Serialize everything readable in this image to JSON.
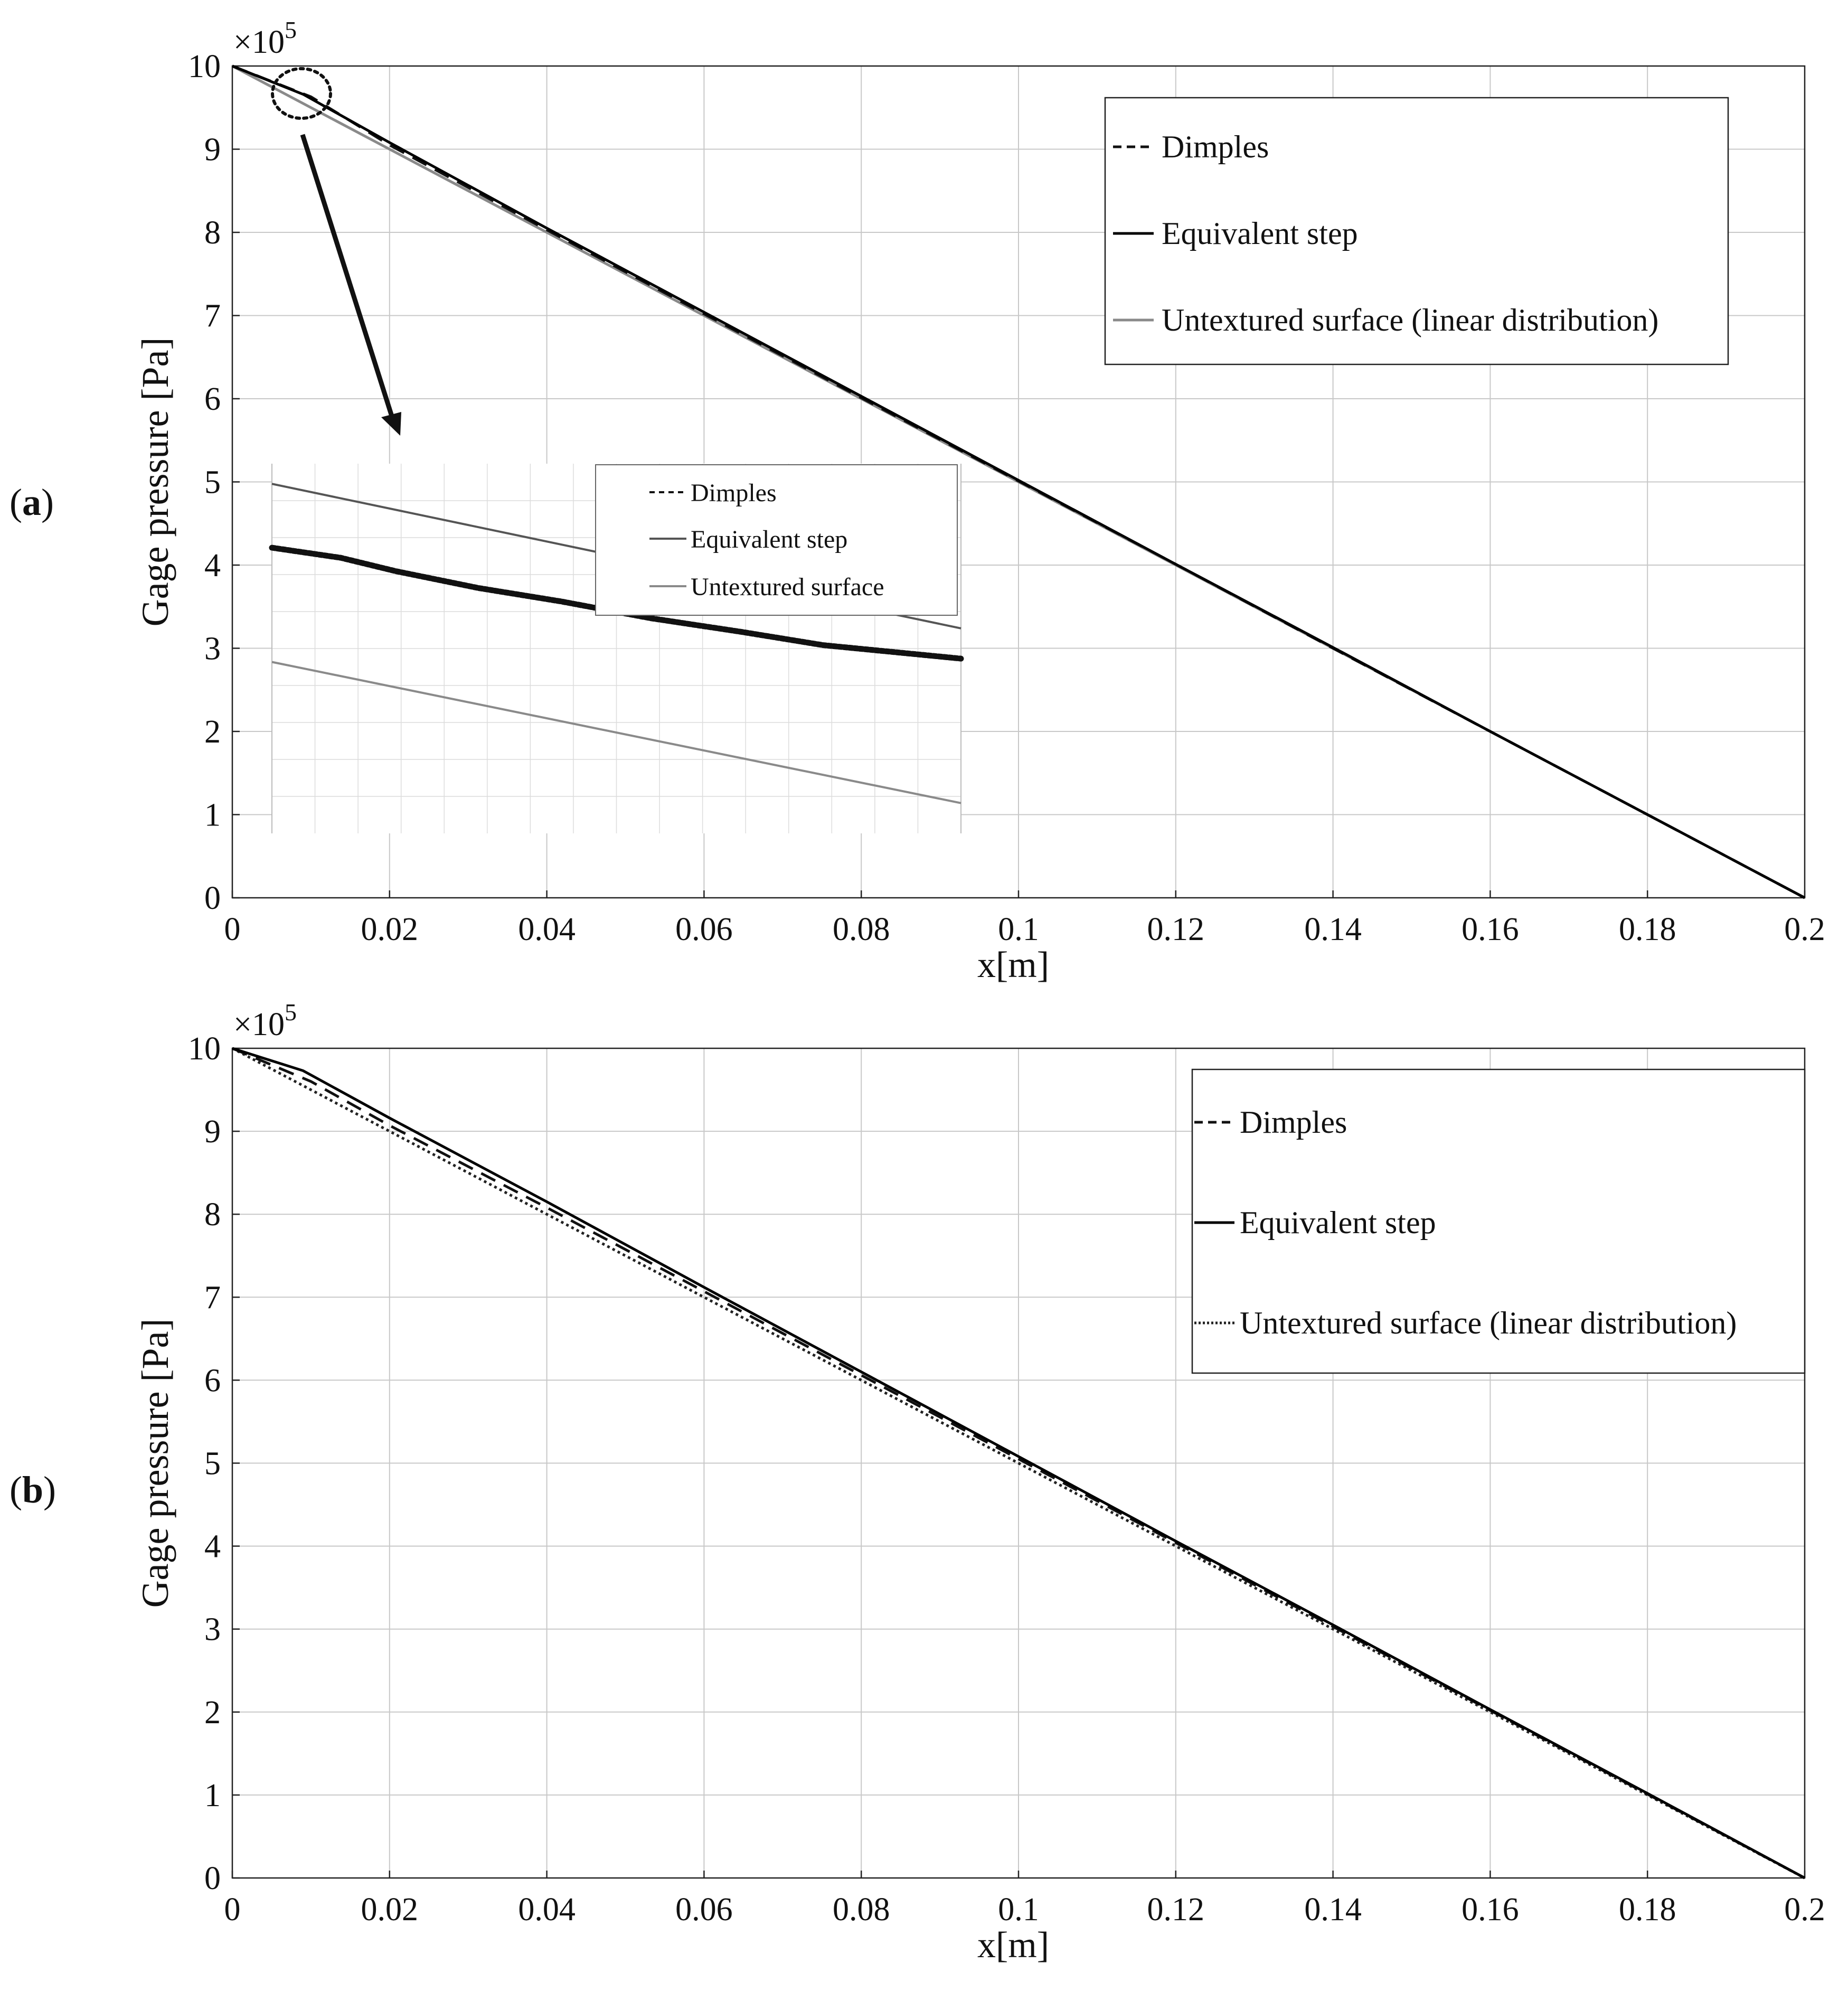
{
  "figure": {
    "panel_labels": [
      {
        "open": "(",
        "letter": "a",
        "close": ")"
      },
      {
        "open": "(",
        "letter": "b",
        "close": ")"
      }
    ]
  },
  "colors": {
    "background": "#ffffff",
    "grid": "#c8c8c8",
    "axis": "#222222",
    "dimples": "#111111",
    "step": "#000000",
    "untextured_a": "#8a8a8a",
    "untextured_b": "#222222",
    "zoom_step": "#555555",
    "zoom_untextured": "#8a8a8a"
  },
  "chart_data": [
    {
      "id": "panel-a",
      "type": "line",
      "panel": "(a)",
      "xlabel": "x[m]",
      "ylabel": "Gage pressure [Pa]",
      "y_multiplier": {
        "base": "×10",
        "exp": "5"
      },
      "xlim": [
        0,
        0.2
      ],
      "ylim": [
        0,
        10
      ],
      "xticks": [
        0,
        0.02,
        0.04,
        0.06,
        0.08,
        0.1,
        0.12,
        0.14,
        0.16,
        0.18,
        0.2
      ],
      "xtick_labels": [
        "0",
        "0.02",
        "0.04",
        "0.06",
        "0.08",
        "0.1",
        "0.12",
        "0.14",
        "0.16",
        "0.18",
        "0.2"
      ],
      "yticks": [
        0,
        1,
        2,
        3,
        4,
        5,
        6,
        7,
        8,
        9,
        10
      ],
      "ytick_labels": [
        "0",
        "1",
        "2",
        "3",
        "4",
        "5",
        "6",
        "7",
        "8",
        "9",
        "10"
      ],
      "grid": true,
      "legend_position": "top-right",
      "legend": [
        "Dimples",
        "Equivalent step",
        "Untextured surface (linear distribution)"
      ],
      "series": [
        {
          "name": "Dimples",
          "style": "dashed",
          "x": [
            0,
            0.01,
            0.02,
            0.04,
            0.06,
            0.08,
            0.1,
            0.12,
            0.14,
            0.16,
            0.18,
            0.2
          ],
          "y": [
            10,
            9.63,
            9.05,
            8.03,
            7.02,
            6.01,
            5.01,
            4.01,
            3.0,
            2.0,
            1.0,
            0
          ]
        },
        {
          "name": "Equivalent step",
          "style": "solid",
          "x": [
            0,
            0.009,
            0.02,
            0.04,
            0.06,
            0.08,
            0.1,
            0.12,
            0.14,
            0.16,
            0.18,
            0.2
          ],
          "y": [
            10,
            9.66,
            9.08,
            8.05,
            7.04,
            6.03,
            5.02,
            4.01,
            3.01,
            2.0,
            1.0,
            0
          ]
        },
        {
          "name": "Untextured surface (linear distribution)",
          "style": "solid",
          "x": [
            0,
            0.2
          ],
          "y": [
            10,
            0
          ]
        }
      ],
      "inset": {
        "description": "zoomed view",
        "legend": [
          "Dimples",
          "Equivalent step",
          "Untextured surface"
        ],
        "series": [
          {
            "name": "Dimples",
            "style": "dotted",
            "x": [
              0,
              0.1,
              0.18,
              0.3,
              0.42,
              0.55,
              0.68,
              0.8,
              1.0
            ],
            "y": [
              0.55,
              0.52,
              0.48,
              0.43,
              0.39,
              0.34,
              0.3,
              0.26,
              0.22
            ]
          },
          {
            "name": "Equivalent step",
            "style": "solid",
            "x": [
              0,
              1
            ],
            "y": [
              0.74,
              0.31
            ]
          },
          {
            "name": "Untextured surface",
            "style": "solid",
            "x": [
              0,
              1
            ],
            "y": [
              0.21,
              -0.21
            ]
          }
        ]
      }
    },
    {
      "id": "panel-b",
      "type": "line",
      "panel": "(b)",
      "xlabel": "x[m]",
      "ylabel": "Gage pressure [Pa]",
      "y_multiplier": {
        "base": "×10",
        "exp": "5"
      },
      "xlim": [
        0,
        0.2
      ],
      "ylim": [
        0,
        10
      ],
      "xticks": [
        0,
        0.02,
        0.04,
        0.06,
        0.08,
        0.1,
        0.12,
        0.14,
        0.16,
        0.18,
        0.2
      ],
      "xtick_labels": [
        "0",
        "0.02",
        "0.04",
        "0.06",
        "0.08",
        "0.1",
        "0.12",
        "0.14",
        "0.16",
        "0.18",
        "0.2"
      ],
      "yticks": [
        0,
        1,
        2,
        3,
        4,
        5,
        6,
        7,
        8,
        9,
        10
      ],
      "ytick_labels": [
        "0",
        "1",
        "2",
        "3",
        "4",
        "5",
        "6",
        "7",
        "8",
        "9",
        "10"
      ],
      "grid": true,
      "legend_position": "top-right",
      "legend": [
        "Dimples",
        "Equivalent step",
        "Untextured surface (linear distribution)"
      ],
      "series": [
        {
          "name": "Dimples",
          "style": "dashed",
          "x": [
            0,
            0.01,
            0.02,
            0.04,
            0.06,
            0.08,
            0.1,
            0.12,
            0.14,
            0.16,
            0.18,
            0.2
          ],
          "y": [
            10,
            9.6,
            9.07,
            8.08,
            7.07,
            6.06,
            5.05,
            4.04,
            3.03,
            2.02,
            1.01,
            0
          ]
        },
        {
          "name": "Equivalent step",
          "style": "solid",
          "x": [
            0,
            0.009,
            0.02,
            0.04,
            0.06,
            0.08,
            0.1,
            0.12,
            0.14,
            0.16,
            0.18,
            0.2
          ],
          "y": [
            10,
            9.73,
            9.16,
            8.15,
            7.12,
            6.1,
            5.08,
            4.06,
            3.05,
            2.03,
            1.02,
            0
          ]
        },
        {
          "name": "Untextured surface (linear distribution)",
          "style": "dotted",
          "x": [
            0,
            0.2
          ],
          "y": [
            10,
            0
          ]
        }
      ]
    }
  ]
}
